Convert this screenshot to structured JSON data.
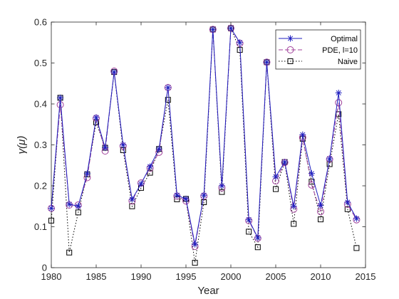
{
  "chart_data": {
    "type": "line",
    "xlabel": "Year",
    "ylabel": "γ(μ)",
    "xlim": [
      1980,
      2015
    ],
    "ylim": [
      0,
      0.6
    ],
    "x_ticks": [
      "1980",
      "1985",
      "1990",
      "1995",
      "2000",
      "2005",
      "2010",
      "2015"
    ],
    "y_ticks": [
      "0",
      "0.1",
      "0.2",
      "0.3",
      "0.4",
      "0.5",
      "0.6"
    ],
    "legend_position": "top-right",
    "grid": false,
    "x": [
      1980,
      1981,
      1982,
      1983,
      1984,
      1985,
      1986,
      1987,
      1988,
      1989,
      1990,
      1991,
      1992,
      1993,
      1994,
      1995,
      1996,
      1997,
      1998,
      1999,
      2000,
      2001,
      2002,
      2003,
      2004,
      2005,
      2006,
      2007,
      2008,
      2009,
      2010,
      2011,
      2012,
      2013,
      2014
    ],
    "series": [
      {
        "name": "Optimal",
        "color": "#1f1fbf",
        "line": "solid",
        "marker": "star",
        "values": [
          0.145,
          0.415,
          0.155,
          0.15,
          0.23,
          0.367,
          0.293,
          0.478,
          0.3,
          0.167,
          0.205,
          0.247,
          0.29,
          0.44,
          0.177,
          0.168,
          0.057,
          0.177,
          0.582,
          0.2,
          0.585,
          0.55,
          0.117,
          0.073,
          0.502,
          0.222,
          0.258,
          0.15,
          0.325,
          0.23,
          0.152,
          0.266,
          0.427,
          0.16,
          0.12
        ]
      },
      {
        "name": "PDE, l=10",
        "color": "#a0409a",
        "line": "dashed",
        "marker": "circle",
        "values": [
          0.145,
          0.398,
          0.153,
          0.153,
          0.22,
          0.365,
          0.285,
          0.48,
          0.297,
          0.163,
          0.207,
          0.243,
          0.282,
          0.44,
          0.175,
          0.163,
          0.052,
          0.175,
          0.582,
          0.195,
          0.585,
          0.548,
          0.115,
          0.072,
          0.502,
          0.212,
          0.257,
          0.143,
          0.318,
          0.202,
          0.137,
          0.265,
          0.403,
          0.155,
          0.117
        ]
      },
      {
        "name": "Naive",
        "color": "#000000",
        "line": "dotted",
        "marker": "square",
        "values": [
          0.115,
          0.415,
          0.037,
          0.135,
          0.228,
          0.355,
          0.293,
          0.478,
          0.287,
          0.15,
          0.195,
          0.232,
          0.29,
          0.41,
          0.167,
          0.168,
          0.012,
          0.16,
          0.582,
          0.185,
          0.585,
          0.532,
          0.088,
          0.05,
          0.502,
          0.192,
          0.258,
          0.107,
          0.315,
          0.21,
          0.118,
          0.253,
          0.375,
          0.143,
          0.048
        ]
      }
    ]
  }
}
